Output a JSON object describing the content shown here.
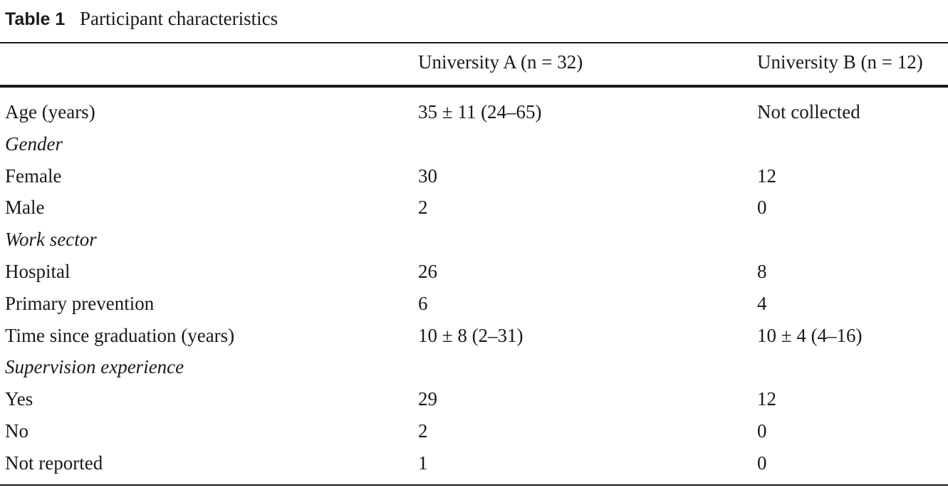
{
  "header": {
    "label": "Table 1",
    "caption": "Participant characteristics"
  },
  "table": {
    "columns": [
      "University A (n = 32)",
      "University B (n = 12)"
    ],
    "rows": [
      {
        "label": "Age (years)",
        "cells": [
          "35 ± 11 (24–65)",
          "Not collected"
        ]
      },
      {
        "label": "Gender",
        "italic": true
      },
      {
        "label": "Female",
        "cells": [
          "30",
          "12"
        ]
      },
      {
        "label": "Male",
        "cells": [
          "2",
          "0"
        ]
      },
      {
        "label": "Work sector",
        "italic": true
      },
      {
        "label": "Hospital",
        "cells": [
          "26",
          "8"
        ]
      },
      {
        "label": "Primary prevention",
        "cells": [
          "6",
          "4"
        ]
      },
      {
        "label": "Time since graduation (years)",
        "cells": [
          "10 ± 8 (2–31)",
          "10 ± 4 (4–16)"
        ]
      },
      {
        "label": "Supervision experience",
        "italic": true
      },
      {
        "label": "Yes",
        "cells": [
          "29",
          "12"
        ]
      },
      {
        "label": "No",
        "cells": [
          "2",
          "0"
        ]
      },
      {
        "label": "Not reported",
        "cells": [
          "1",
          "0"
        ]
      }
    ]
  }
}
